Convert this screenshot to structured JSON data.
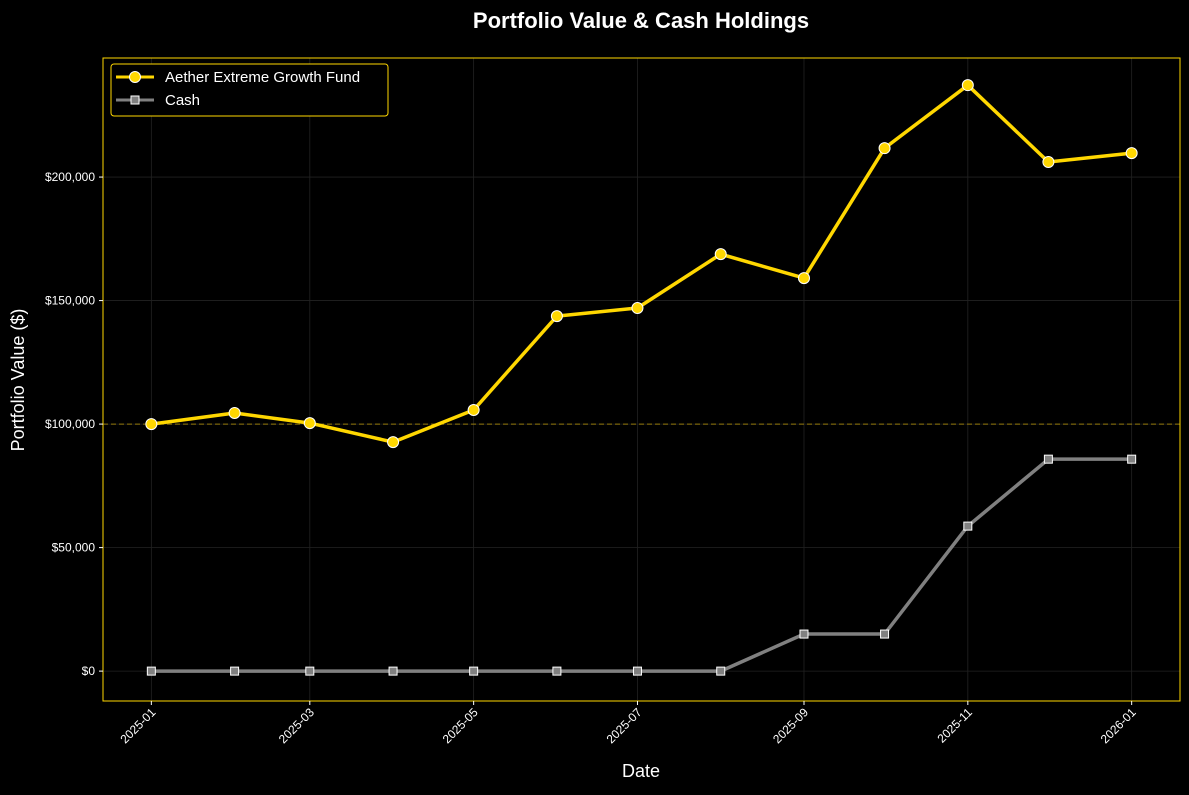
{
  "chart_data": {
    "type": "line",
    "title": "Portfolio Value & Cash Holdings",
    "xlabel": "Date",
    "ylabel": "Portfolio Value ($)",
    "x": [
      "2025-01-01",
      "2025-02-01",
      "2025-03-01",
      "2025-04-01",
      "2025-05-01",
      "2025-06-01",
      "2025-07-01",
      "2025-08-01",
      "2025-09-01",
      "2025-10-01",
      "2025-11-01",
      "2025-12-01",
      "2026-01-01"
    ],
    "series": [
      {
        "name": "Aether Extreme Growth Fund",
        "color": "#FFD700",
        "marker": "circle",
        "values": [
          100000,
          104500,
          100400,
          92700,
          105700,
          143700,
          147000,
          168800,
          159100,
          211700,
          237200,
          206100,
          209700
        ]
      },
      {
        "name": "Cash",
        "color": "#808080",
        "marker": "square",
        "values": [
          0,
          0,
          0,
          0,
          0,
          0,
          0,
          0,
          15000,
          15000,
          58700,
          85800,
          85800
        ]
      }
    ],
    "reference_line": {
      "value": 100000,
      "style": "dashed",
      "color": "#B8960C"
    },
    "ylim": [
      -12100,
      248200
    ],
    "xlim": [
      "2024-12-14",
      "2026-01-19"
    ],
    "yticks": [
      0,
      50000,
      100000,
      150000,
      200000
    ],
    "ytick_labels": [
      "$0",
      "$50,000",
      "$100,000",
      "$150,000",
      "$200,000"
    ],
    "xticks": [
      "2025-01-01",
      "2025-03-01",
      "2025-05-01",
      "2025-07-01",
      "2025-09-01",
      "2025-11-01",
      "2026-01-01"
    ],
    "xtick_labels": [
      "2025-01",
      "2025-03",
      "2025-05",
      "2025-07",
      "2025-09",
      "2025-11",
      "2026-01"
    ],
    "grid": true,
    "legend_position": "top-left"
  }
}
